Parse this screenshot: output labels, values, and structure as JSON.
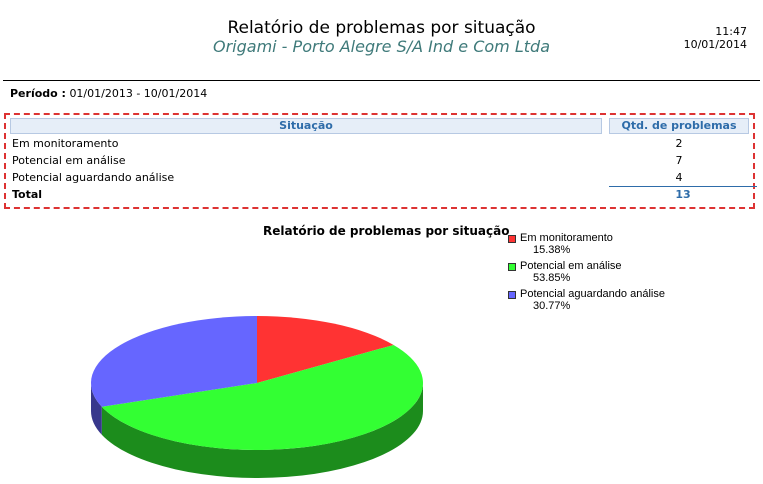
{
  "header": {
    "title": "Relatório de problemas por situação",
    "subtitle": "Origami - Porto Alegre S/A Ind e Com Ltda",
    "time": "11:47",
    "date": "10/01/2014"
  },
  "period": {
    "label": "Período :",
    "value": "01/01/2013 - 10/01/2014"
  },
  "table": {
    "col_situacao": "Situação",
    "col_qtd": "Qtd. de problemas",
    "rows": [
      {
        "label": "Em monitoramento",
        "value": "2"
      },
      {
        "label": "Potencial em análise",
        "value": "7"
      },
      {
        "label": "Potencial aguardando análise",
        "value": "4"
      }
    ],
    "total_label": "Total",
    "total_value": "13"
  },
  "chart_data": {
    "type": "pie",
    "title": "Relatório de problemas por situação",
    "categories": [
      "Em monitoramento",
      "Potencial em análise",
      "Potencial aguardando análise"
    ],
    "values": [
      2,
      7,
      4
    ],
    "percent_labels": [
      "15.38%",
      "53.85%",
      "30.77%"
    ],
    "colors": [
      "#ff3333",
      "#33ff33",
      "#6666ff"
    ],
    "legend_position": "top-right"
  }
}
